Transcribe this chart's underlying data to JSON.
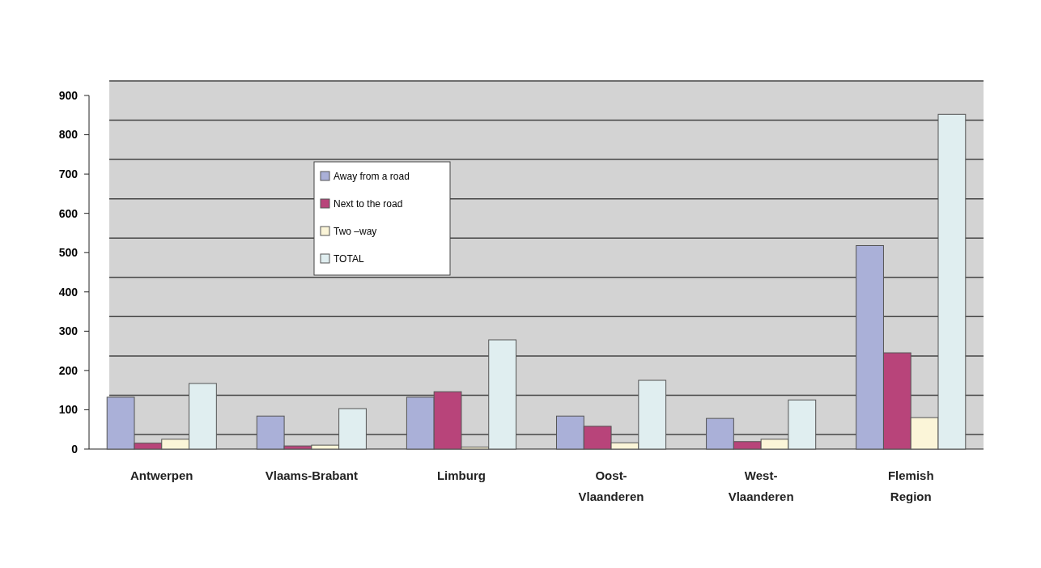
{
  "chart_data": {
    "type": "bar",
    "categories": [
      "Antwerpen",
      "Vlaams-Brabant",
      "Limburg",
      "Oost-\nVlaanderen",
      "West-\nVlaanderen",
      "Flemish\nRegion"
    ],
    "series": [
      {
        "name": "Away from a road",
        "color": "#aab0d8",
        "values": [
          132,
          84,
          132,
          84,
          78,
          518
        ]
      },
      {
        "name": "Next to the road",
        "color": "#b8447a",
        "values": [
          15,
          8,
          146,
          58,
          19,
          245
        ]
      },
      {
        "name": "Two –way",
        "color": "#fbf5d8",
        "values": [
          25,
          10,
          5,
          16,
          25,
          80
        ]
      },
      {
        "name": "TOTAL",
        "color": "#e0eef0",
        "values": [
          167,
          103,
          278,
          175,
          125,
          852
        ]
      }
    ],
    "ylim": [
      0,
      900
    ],
    "yticks": [
      0,
      100,
      200,
      300,
      400,
      500,
      600,
      700,
      800,
      900
    ],
    "grid": "y",
    "legend": "top left"
  }
}
